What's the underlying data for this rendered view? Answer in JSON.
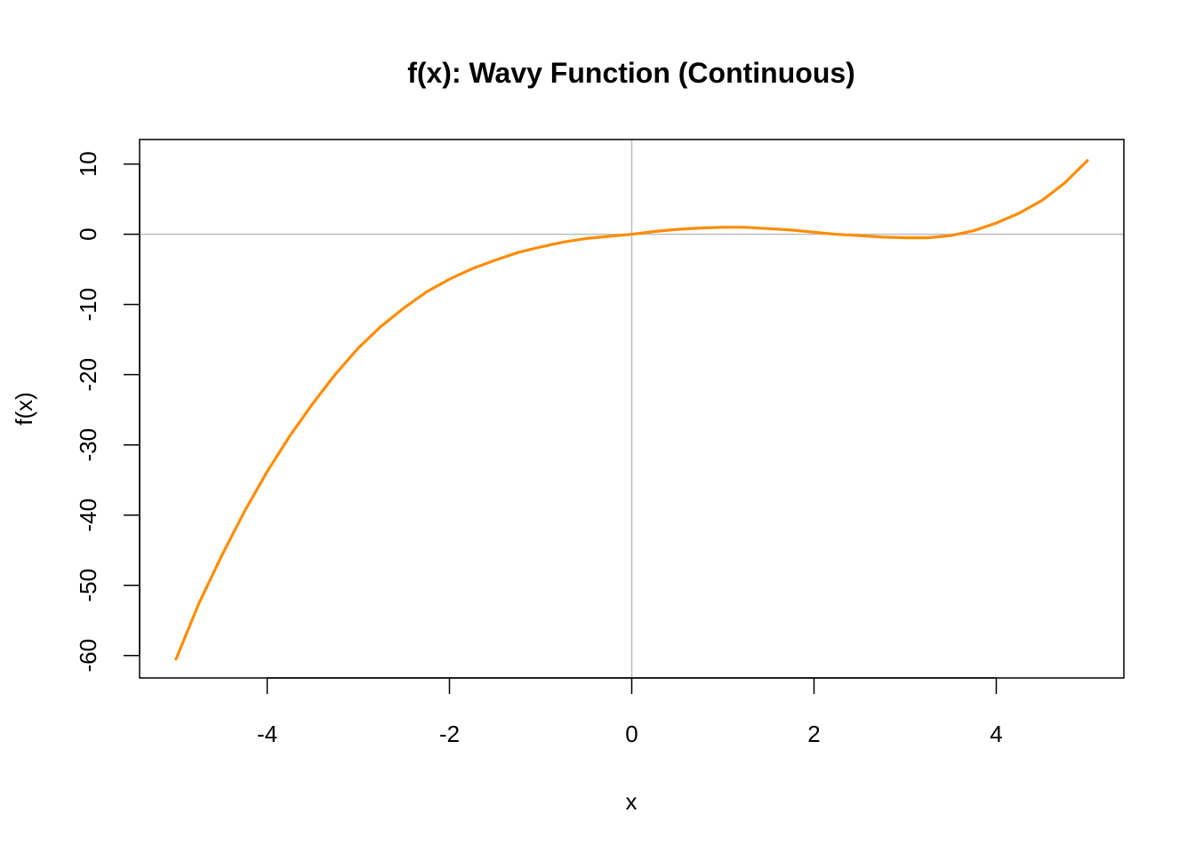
{
  "chart_data": {
    "type": "line",
    "title": "f(x): Wavy Function (Continuous)",
    "xlabel": "x",
    "ylabel": "f(x)",
    "xlim": [
      -5.4,
      5.4
    ],
    "ylim": [
      -63.2,
      13.5
    ],
    "x_ticks": [
      -4,
      -2,
      0,
      2,
      4
    ],
    "x_tick_labels": [
      "-4",
      "-2",
      "0",
      "2",
      "4"
    ],
    "y_ticks": [
      -60,
      -50,
      -40,
      -30,
      -20,
      -10,
      0,
      10
    ],
    "y_tick_labels": [
      "-60",
      "-50",
      "-40",
      "-30",
      "-20",
      "-10",
      "0",
      "10"
    ],
    "reference_lines": {
      "x": 0,
      "y": 0,
      "color": "#bebebe"
    },
    "grid": false,
    "series": [
      {
        "color": "#ff8c00",
        "x": [
          -5,
          -4.75,
          -4.5,
          -4.25,
          -4,
          -3.75,
          -3.5,
          -3.25,
          -3,
          -2.75,
          -2.5,
          -2.25,
          -2,
          -1.75,
          -1.5,
          -1.25,
          -1,
          -0.75,
          -0.5,
          -0.25,
          0,
          0.25,
          0.5,
          0.75,
          1,
          1.25,
          1.5,
          1.75,
          2,
          2.25,
          2.5,
          2.75,
          3,
          3.25,
          3.5,
          3.75,
          4,
          4.25,
          4.5,
          4.75,
          5
        ],
        "y": [
          -60.5,
          -52.6,
          -45.8,
          -39.5,
          -33.8,
          -28.7,
          -24.1,
          -19.9,
          -16.2,
          -13.1,
          -10.5,
          -8.2,
          -6.4,
          -4.9,
          -3.7,
          -2.6,
          -1.8,
          -1.1,
          -0.6,
          -0.3,
          0.0,
          0.4,
          0.7,
          0.9,
          1.0,
          1.0,
          0.8,
          0.6,
          0.3,
          0.0,
          -0.2,
          -0.4,
          -0.5,
          -0.5,
          -0.2,
          0.5,
          1.6,
          3.0,
          4.8,
          7.3,
          10.5
        ]
      }
    ]
  }
}
